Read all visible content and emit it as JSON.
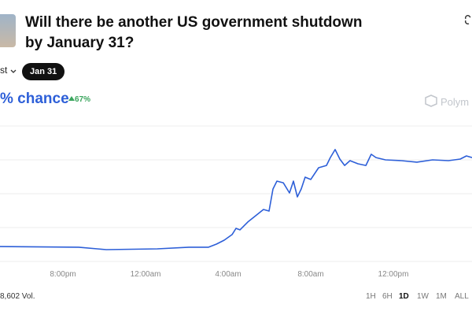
{
  "header": {
    "title": "Will there be another US government shutdown by January 31?",
    "outcome_tab": "st",
    "date_tab": "Jan 31"
  },
  "chance": {
    "label": "% chance",
    "change": "67%"
  },
  "brand": "Polym",
  "volume": "8,602 Vol.",
  "ranges": [
    "1H",
    "6H",
    "1D",
    "1W",
    "1M",
    "ALL"
  ],
  "active_range": 2,
  "chart_data": {
    "type": "line",
    "color": "#2d5fd8",
    "x": [
      16.95,
      20.76,
      22.1,
      24.57,
      26.1,
      27.05,
      27.43,
      27.81,
      28.19,
      28.38,
      28.57,
      28.95,
      29.33,
      29.71,
      29.98,
      30.17,
      30.36,
      30.67,
      30.97,
      31.16,
      31.35,
      31.54,
      31.73,
      32.0,
      32.38,
      32.76,
      32.95,
      33.18,
      33.41,
      33.64,
      33.9,
      34.29,
      34.67,
      34.93,
      35.16,
      35.62,
      36.38,
      37.14,
      37.9,
      38.67,
      39.24,
      39.54,
      39.81
    ],
    "values": [
      11.0,
      10.5,
      8.7,
      9.3,
      10.5,
      10.5,
      12.8,
      15.7,
      19.8,
      24.4,
      23.3,
      29.1,
      33.7,
      38.4,
      37.2,
      53.5,
      59.3,
      58.1,
      50.6,
      59.3,
      47.7,
      53.5,
      62.2,
      60.5,
      69.2,
      70.9,
      76.7,
      82.6,
      75.6,
      70.9,
      74.4,
      72.1,
      70.9,
      79.1,
      76.7,
      75.0,
      74.4,
      73.3,
      75.0,
      74.4,
      75.6,
      77.9,
      76.7
    ],
    "xlim": [
      16.95,
      39.81
    ],
    "xticks": [
      {
        "value": 20,
        "label": "8:00pm"
      },
      {
        "value": 24,
        "label": "12:00am"
      },
      {
        "value": 28,
        "label": "4:00am"
      },
      {
        "value": 32,
        "label": "8:00am"
      },
      {
        "value": 36,
        "label": "12:00pm"
      }
    ],
    "ylim": [
      0,
      100
    ],
    "yticks": [
      0,
      25,
      50,
      75,
      100
    ],
    "grid": true
  }
}
